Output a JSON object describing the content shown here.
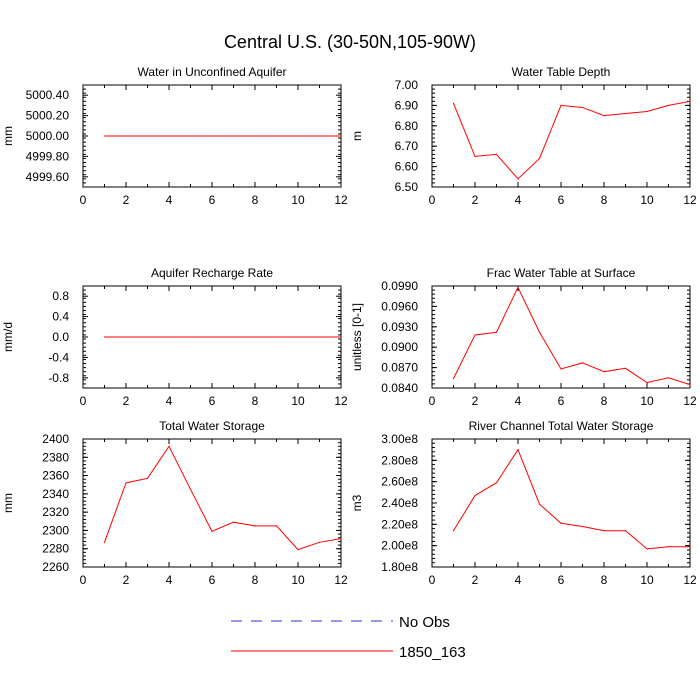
{
  "figure": {
    "title": "Central U.S. (30-50N,105-90W)"
  },
  "legend": {
    "position": "bottom-center",
    "items": [
      {
        "label": "No Obs",
        "color": "#3333cc",
        "dash": true
      },
      {
        "label": "1850_163",
        "color": "#ff0000",
        "dash": false
      }
    ]
  },
  "chart_data": [
    {
      "type": "line",
      "title": "Water in Unconfined Aquifer",
      "ylabel": "mm",
      "x": [
        1,
        2,
        3,
        4,
        5,
        6,
        7,
        8,
        9,
        10,
        11,
        12
      ],
      "series": [
        {
          "name": "1850_163",
          "color": "#ff0000",
          "values": [
            5000,
            5000,
            5000,
            5000,
            5000,
            5000,
            5000,
            5000,
            5000,
            5000,
            5000,
            5000
          ]
        }
      ],
      "xlim": [
        0,
        12
      ],
      "xticks": [
        0,
        2,
        4,
        6,
        8,
        10,
        12
      ],
      "ylim": [
        4999.5,
        5000.5
      ],
      "yticks": [
        4999.6,
        4999.8,
        5000.0,
        5000.2,
        5000.4
      ],
      "ytick_labels": [
        "4999.60",
        "4999.80",
        "5000.00",
        "5000.20",
        "5000.40"
      ]
    },
    {
      "type": "line",
      "title": "Water Table Depth",
      "ylabel": "m",
      "x": [
        1,
        2,
        3,
        4,
        5,
        6,
        7,
        8,
        9,
        10,
        11,
        12
      ],
      "series": [
        {
          "name": "1850_163",
          "color": "#ff0000",
          "values": [
            6.91,
            6.65,
            6.66,
            6.54,
            6.64,
            6.9,
            6.89,
            6.85,
            6.86,
            6.87,
            6.9,
            6.92
          ]
        }
      ],
      "xlim": [
        0,
        12
      ],
      "xticks": [
        0,
        2,
        4,
        6,
        8,
        10,
        12
      ],
      "ylim": [
        6.5,
        7.0
      ],
      "yticks": [
        6.5,
        6.6,
        6.7,
        6.8,
        6.9,
        7.0
      ],
      "ytick_labels": [
        "6.50",
        "6.60",
        "6.70",
        "6.80",
        "6.90",
        "7.00"
      ]
    },
    {
      "type": "line",
      "title": "Aquifer Recharge Rate",
      "ylabel": "mm/d",
      "x": [
        1,
        2,
        3,
        4,
        5,
        6,
        7,
        8,
        9,
        10,
        11,
        12
      ],
      "series": [
        {
          "name": "1850_163",
          "color": "#ff0000",
          "values": [
            0,
            0,
            0,
            0,
            0,
            0,
            0,
            0,
            0,
            0,
            0,
            0
          ]
        }
      ],
      "xlim": [
        0,
        12
      ],
      "xticks": [
        0,
        2,
        4,
        6,
        8,
        10,
        12
      ],
      "ylim": [
        -1.0,
        1.0
      ],
      "yticks": [
        -0.8,
        -0.4,
        0.0,
        0.4,
        0.8
      ],
      "ytick_labels": [
        "-0.8",
        "-0.4",
        "0.0",
        "0.4",
        "0.8"
      ]
    },
    {
      "type": "line",
      "title": "Frac Water Table at Surface",
      "ylabel": "unitless [0-1]",
      "x": [
        1,
        2,
        3,
        4,
        5,
        6,
        7,
        8,
        9,
        10,
        11,
        12
      ],
      "series": [
        {
          "name": "1850_163",
          "color": "#ff0000",
          "values": [
            0.0854,
            0.0918,
            0.0922,
            0.0988,
            0.0922,
            0.0868,
            0.0877,
            0.0864,
            0.0869,
            0.0848,
            0.0855,
            0.0845
          ]
        }
      ],
      "xlim": [
        0,
        12
      ],
      "xticks": [
        0,
        2,
        4,
        6,
        8,
        10,
        12
      ],
      "ylim": [
        0.084,
        0.099
      ],
      "yticks": [
        0.084,
        0.087,
        0.09,
        0.093,
        0.096,
        0.099
      ],
      "ytick_labels": [
        "0.0840",
        "0.0870",
        "0.0900",
        "0.0930",
        "0.0960",
        "0.0990"
      ]
    },
    {
      "type": "line",
      "title": "Total Water Storage",
      "ylabel": "mm",
      "x": [
        1,
        2,
        3,
        4,
        5,
        6,
        7,
        8,
        9,
        10,
        11,
        12
      ],
      "series": [
        {
          "name": "1850_163",
          "color": "#ff0000",
          "values": [
            2287,
            2352,
            2357,
            2392,
            2345,
            2299,
            2309,
            2305,
            2305,
            2279,
            2287,
            2291
          ]
        }
      ],
      "xlim": [
        0,
        12
      ],
      "xticks": [
        0,
        2,
        4,
        6,
        8,
        10,
        12
      ],
      "ylim": [
        2260,
        2400
      ],
      "yticks": [
        2260,
        2280,
        2300,
        2320,
        2340,
        2360,
        2380,
        2400
      ],
      "ytick_labels": [
        "2260",
        "2280",
        "2300",
        "2320",
        "2340",
        "2360",
        "2380",
        "2400"
      ]
    },
    {
      "type": "line",
      "title": "River Channel Total Water Storage",
      "ylabel": "m3",
      "x": [
        1,
        2,
        3,
        4,
        5,
        6,
        7,
        8,
        9,
        10,
        11,
        12
      ],
      "series": [
        {
          "name": "1850_163",
          "color": "#ff0000",
          "values": [
            214000000.0,
            247000000.0,
            259000000.0,
            290000000.0,
            239000000.0,
            221000000.0,
            218000000.0,
            214000000.0,
            214000000.0,
            197000000.0,
            199000000.0,
            199000000.0
          ]
        }
      ],
      "xlim": [
        0,
        12
      ],
      "xticks": [
        0,
        2,
        4,
        6,
        8,
        10,
        12
      ],
      "ylim": [
        180000000.0,
        300000000.0
      ],
      "yticks": [
        180000000.0,
        200000000.0,
        220000000.0,
        240000000.0,
        260000000.0,
        280000000.0,
        300000000.0
      ],
      "ytick_labels": [
        "1.80e8",
        "2.00e8",
        "2.20e8",
        "2.40e8",
        "2.60e8",
        "2.80e8",
        "3.00e8"
      ]
    }
  ]
}
